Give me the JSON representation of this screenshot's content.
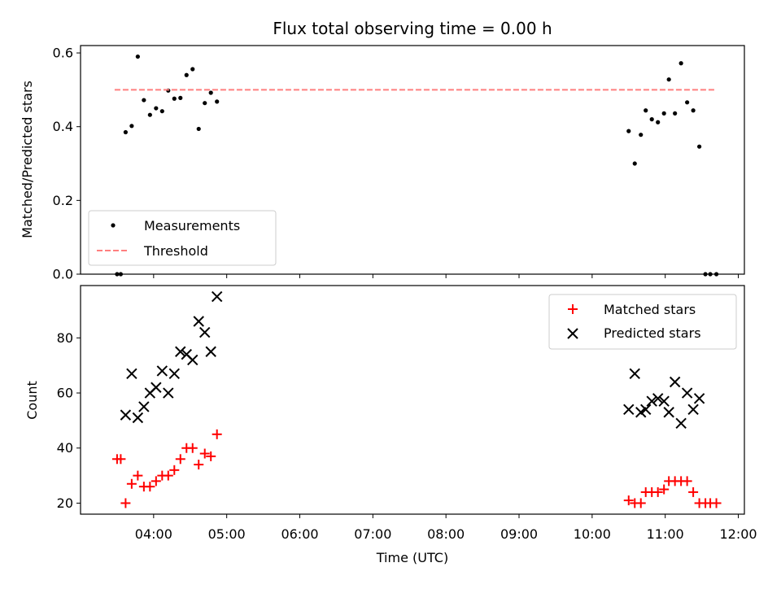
{
  "figure": {
    "title": "Flux total observing time = 0.00 h"
  },
  "chart_data": [
    {
      "type": "scatter",
      "ylabel": "Matched/Predicted stars",
      "xlabel": "",
      "ylim": [
        0,
        0.62
      ],
      "yticks": [
        0.0,
        0.2,
        0.4,
        0.6
      ],
      "ytick_labels": [
        "0.0",
        "0.2",
        "0.4",
        "0.6"
      ],
      "xlim": [
        "03:00",
        "12:05"
      ],
      "xticks": [
        "04:00",
        "05:00",
        "06:00",
        "07:00",
        "08:00",
        "09:00",
        "10:00",
        "11:00",
        "12:00"
      ],
      "grid": false,
      "legend_position": "lower-left",
      "series": [
        {
          "name": "Measurements",
          "marker": "dot",
          "color": "#000000",
          "points": [
            {
              "x": "03:30",
              "y": 0.0
            },
            {
              "x": "03:33",
              "y": 0.0
            },
            {
              "x": "03:37",
              "y": 0.385
            },
            {
              "x": "03:42",
              "y": 0.402
            },
            {
              "x": "03:47",
              "y": 0.59
            },
            {
              "x": "03:52",
              "y": 0.472
            },
            {
              "x": "03:57",
              "y": 0.432
            },
            {
              "x": "04:02",
              "y": 0.45
            },
            {
              "x": "04:07",
              "y": 0.442
            },
            {
              "x": "04:12",
              "y": 0.498
            },
            {
              "x": "04:17",
              "y": 0.476
            },
            {
              "x": "04:22",
              "y": 0.478
            },
            {
              "x": "04:27",
              "y": 0.54
            },
            {
              "x": "04:32",
              "y": 0.556
            },
            {
              "x": "04:37",
              "y": 0.394
            },
            {
              "x": "04:42",
              "y": 0.464
            },
            {
              "x": "04:47",
              "y": 0.492
            },
            {
              "x": "04:52",
              "y": 0.468
            },
            {
              "x": "10:30",
              "y": 0.388
            },
            {
              "x": "10:35",
              "y": 0.3
            },
            {
              "x": "10:40",
              "y": 0.378
            },
            {
              "x": "10:44",
              "y": 0.444
            },
            {
              "x": "10:49",
              "y": 0.42
            },
            {
              "x": "10:54",
              "y": 0.412
            },
            {
              "x": "10:59",
              "y": 0.436
            },
            {
              "x": "11:03",
              "y": 0.528
            },
            {
              "x": "11:08",
              "y": 0.436
            },
            {
              "x": "11:13",
              "y": 0.572
            },
            {
              "x": "11:18",
              "y": 0.466
            },
            {
              "x": "11:23",
              "y": 0.444
            },
            {
              "x": "11:28",
              "y": 0.346
            },
            {
              "x": "11:33",
              "y": 0.0
            },
            {
              "x": "11:37",
              "y": 0.0
            },
            {
              "x": "11:42",
              "y": 0.0
            }
          ]
        },
        {
          "name": "Threshold",
          "type": "line",
          "style": "dashed",
          "color": "#ff7f7f",
          "points": [
            {
              "x": "03:28",
              "y": 0.5
            },
            {
              "x": "11:42",
              "y": 0.5
            }
          ]
        }
      ]
    },
    {
      "type": "scatter",
      "ylabel": "Count",
      "xlabel": "Time (UTC)",
      "ylim": [
        16,
        99
      ],
      "yticks": [
        20,
        40,
        60,
        80
      ],
      "ytick_labels": [
        "20",
        "40",
        "60",
        "80"
      ],
      "xlim": [
        "03:00",
        "12:05"
      ],
      "xticks": [
        "04:00",
        "05:00",
        "06:00",
        "07:00",
        "08:00",
        "09:00",
        "10:00",
        "11:00",
        "12:00"
      ],
      "grid": false,
      "legend_position": "top-right",
      "series": [
        {
          "name": "Matched stars",
          "marker": "plus",
          "color": "#ff0000",
          "points": [
            {
              "x": "03:30",
              "y": 36
            },
            {
              "x": "03:33",
              "y": 36
            },
            {
              "x": "03:37",
              "y": 20
            },
            {
              "x": "03:42",
              "y": 27
            },
            {
              "x": "03:47",
              "y": 30
            },
            {
              "x": "03:52",
              "y": 26
            },
            {
              "x": "03:57",
              "y": 26
            },
            {
              "x": "04:02",
              "y": 28
            },
            {
              "x": "04:07",
              "y": 30
            },
            {
              "x": "04:12",
              "y": 30
            },
            {
              "x": "04:17",
              "y": 32
            },
            {
              "x": "04:22",
              "y": 36
            },
            {
              "x": "04:27",
              "y": 40
            },
            {
              "x": "04:32",
              "y": 40
            },
            {
              "x": "04:37",
              "y": 34
            },
            {
              "x": "04:42",
              "y": 38
            },
            {
              "x": "04:47",
              "y": 37
            },
            {
              "x": "04:52",
              "y": 45
            },
            {
              "x": "10:30",
              "y": 21
            },
            {
              "x": "10:35",
              "y": 20
            },
            {
              "x": "10:40",
              "y": 20
            },
            {
              "x": "10:44",
              "y": 24
            },
            {
              "x": "10:49",
              "y": 24
            },
            {
              "x": "10:54",
              "y": 24
            },
            {
              "x": "10:59",
              "y": 25
            },
            {
              "x": "11:03",
              "y": 28
            },
            {
              "x": "11:08",
              "y": 28
            },
            {
              "x": "11:13",
              "y": 28
            },
            {
              "x": "11:18",
              "y": 28
            },
            {
              "x": "11:23",
              "y": 24
            },
            {
              "x": "11:28",
              "y": 20
            },
            {
              "x": "11:33",
              "y": 20
            },
            {
              "x": "11:37",
              "y": 20
            },
            {
              "x": "11:42",
              "y": 20
            }
          ]
        },
        {
          "name": "Predicted stars",
          "marker": "x",
          "color": "#000000",
          "points": [
            {
              "x": "03:37",
              "y": 52
            },
            {
              "x": "03:42",
              "y": 67
            },
            {
              "x": "03:47",
              "y": 51
            },
            {
              "x": "03:52",
              "y": 55
            },
            {
              "x": "03:57",
              "y": 60
            },
            {
              "x": "04:02",
              "y": 62
            },
            {
              "x": "04:07",
              "y": 68
            },
            {
              "x": "04:12",
              "y": 60
            },
            {
              "x": "04:17",
              "y": 67
            },
            {
              "x": "04:22",
              "y": 75
            },
            {
              "x": "04:27",
              "y": 74
            },
            {
              "x": "04:32",
              "y": 72
            },
            {
              "x": "04:37",
              "y": 86
            },
            {
              "x": "04:42",
              "y": 82
            },
            {
              "x": "04:47",
              "y": 75
            },
            {
              "x": "04:52",
              "y": 95
            },
            {
              "x": "10:30",
              "y": 54
            },
            {
              "x": "10:35",
              "y": 67
            },
            {
              "x": "10:40",
              "y": 53
            },
            {
              "x": "10:44",
              "y": 54
            },
            {
              "x": "10:49",
              "y": 57
            },
            {
              "x": "10:54",
              "y": 58
            },
            {
              "x": "10:59",
              "y": 57
            },
            {
              "x": "11:03",
              "y": 53
            },
            {
              "x": "11:08",
              "y": 64
            },
            {
              "x": "11:13",
              "y": 49
            },
            {
              "x": "11:18",
              "y": 60
            },
            {
              "x": "11:23",
              "y": 54
            },
            {
              "x": "11:28",
              "y": 58
            }
          ]
        }
      ]
    }
  ]
}
